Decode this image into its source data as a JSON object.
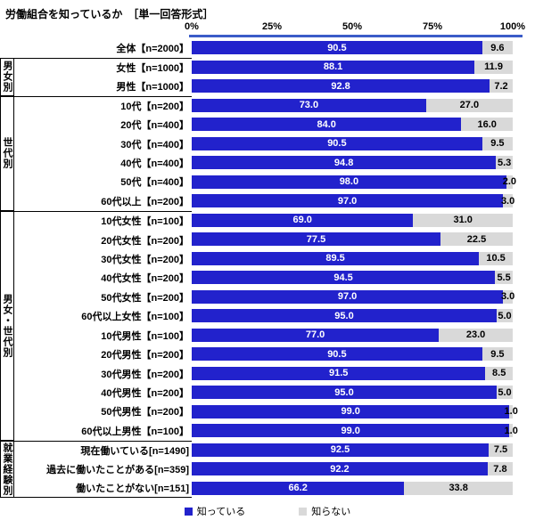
{
  "title": "労働組合を知っているか　［単一回答形式］",
  "colors": {
    "know": "#2222cc",
    "dontknow": "#d9d9d9",
    "know_text": "#ffffff",
    "dontknow_text": "#000000",
    "axis_line": "#3b5cc8"
  },
  "legend": [
    {
      "label": "知っている",
      "color": "#2222cc"
    },
    {
      "label": "知らない",
      "color": "#d9d9d9"
    }
  ],
  "chart_data": {
    "type": "bar",
    "orientation": "horizontal",
    "stacked": true,
    "x_axis": {
      "ticks": [
        "0%",
        "25%",
        "50%",
        "75%",
        "100%"
      ],
      "range": [
        0,
        100
      ]
    },
    "series_names": [
      "知っている",
      "知らない"
    ],
    "groups": [
      {
        "name": "",
        "rows": [
          {
            "label": "全体【n=2000】",
            "know": 90.5,
            "dontknow": 9.6
          }
        ]
      },
      {
        "name": "男女別",
        "rows": [
          {
            "label": "女性【n=1000】",
            "know": 88.1,
            "dontknow": 11.9
          },
          {
            "label": "男性【n=1000】",
            "know": 92.8,
            "dontknow": 7.2
          }
        ]
      },
      {
        "name": "世代別",
        "rows": [
          {
            "label": "10代【n=200】",
            "know": 73.0,
            "dontknow": 27.0
          },
          {
            "label": "20代【n=400】",
            "know": 84.0,
            "dontknow": 16.0
          },
          {
            "label": "30代【n=400】",
            "know": 90.5,
            "dontknow": 9.5
          },
          {
            "label": "40代【n=400】",
            "know": 94.8,
            "dontknow": 5.3
          },
          {
            "label": "50代【n=400】",
            "know": 98.0,
            "dontknow": 2.0
          },
          {
            "label": "60代以上【n=200】",
            "know": 97.0,
            "dontknow": 3.0
          }
        ]
      },
      {
        "name": "男女・世代別",
        "rows": [
          {
            "label": "10代女性【n=100】",
            "know": 69.0,
            "dontknow": 31.0
          },
          {
            "label": "20代女性【n=200】",
            "know": 77.5,
            "dontknow": 22.5
          },
          {
            "label": "30代女性【n=200】",
            "know": 89.5,
            "dontknow": 10.5
          },
          {
            "label": "40代女性【n=200】",
            "know": 94.5,
            "dontknow": 5.5
          },
          {
            "label": "50代女性【n=200】",
            "know": 97.0,
            "dontknow": 3.0
          },
          {
            "label": "60代以上女性【n=100】",
            "know": 95.0,
            "dontknow": 5.0
          },
          {
            "label": "10代男性【n=100】",
            "know": 77.0,
            "dontknow": 23.0
          },
          {
            "label": "20代男性【n=200】",
            "know": 90.5,
            "dontknow": 9.5
          },
          {
            "label": "30代男性【n=200】",
            "know": 91.5,
            "dontknow": 8.5
          },
          {
            "label": "40代男性【n=200】",
            "know": 95.0,
            "dontknow": 5.0
          },
          {
            "label": "50代男性【n=200】",
            "know": 99.0,
            "dontknow": 1.0
          },
          {
            "label": "60代以上男性【n=100】",
            "know": 99.0,
            "dontknow": 1.0
          }
        ]
      },
      {
        "name": "就業経験別",
        "rows": [
          {
            "label": "現在働いている[n=1490]",
            "know": 92.5,
            "dontknow": 7.5
          },
          {
            "label": "過去に働いたことがある[n=359]",
            "know": 92.2,
            "dontknow": 7.8
          },
          {
            "label": "働いたことがない[n=151]",
            "know": 66.2,
            "dontknow": 33.8
          }
        ]
      }
    ]
  }
}
